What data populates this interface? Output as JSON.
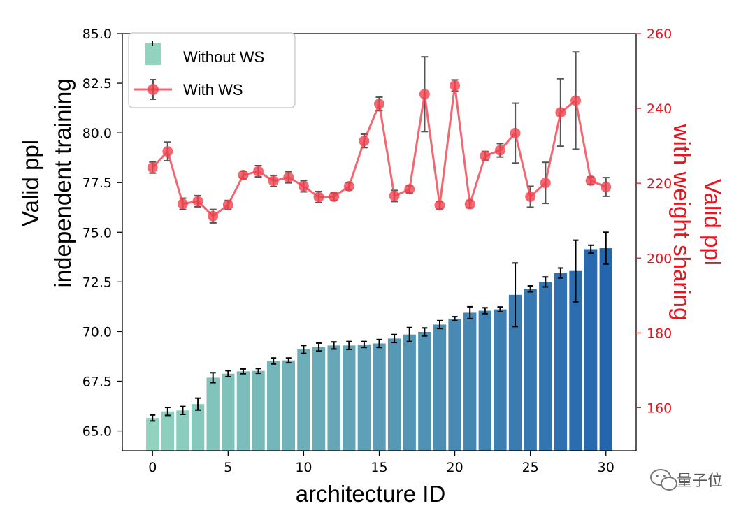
{
  "chart_data": {
    "type": "bar+line",
    "x_label": "architecture ID",
    "y_left_label_line1": "Valid ppl",
    "y_left_label_line2": "independent training",
    "y_right_label_line1": "Valid ppl",
    "y_right_label_line2": "with weight sharing",
    "x_range": [
      -2,
      32
    ],
    "x_ticks": [
      "0",
      "5",
      "10",
      "15",
      "20",
      "25",
      "30"
    ],
    "y_left_range": [
      64.0,
      85.0
    ],
    "y_left_ticks": [
      "65.0",
      "67.5",
      "70.0",
      "72.5",
      "75.0",
      "77.5",
      "80.0",
      "82.5",
      "85.0"
    ],
    "y_right_range": [
      148.5,
      260
    ],
    "y_right_ticks": [
      "160",
      "180",
      "200",
      "220",
      "240",
      "260"
    ],
    "colors": {
      "bar_start": "#91d3be",
      "bar_end": "#2466ae",
      "line": "#f0414e",
      "right_axis": "#e8141e",
      "errorbar_bar": "#000000",
      "errorbar_line": "#555555"
    },
    "series": [
      {
        "name": "Without WS",
        "type": "bar",
        "axis": "left",
        "x": [
          0,
          1,
          2,
          3,
          4,
          5,
          6,
          7,
          8,
          9,
          10,
          11,
          12,
          13,
          14,
          15,
          16,
          17,
          18,
          19,
          20,
          21,
          22,
          23,
          24,
          25,
          26,
          27,
          28,
          29,
          30
        ],
        "values": [
          65.65,
          65.98,
          66.03,
          66.35,
          67.68,
          67.88,
          68.0,
          68.02,
          68.52,
          68.55,
          69.1,
          69.22,
          69.3,
          69.3,
          69.35,
          69.4,
          69.65,
          69.85,
          69.98,
          70.35,
          70.65,
          70.95,
          71.05,
          71.12,
          71.85,
          72.15,
          72.5,
          72.95,
          73.05,
          74.15,
          74.2
        ],
        "errors": [
          0.15,
          0.2,
          0.2,
          0.3,
          0.25,
          0.15,
          0.12,
          0.12,
          0.15,
          0.12,
          0.2,
          0.2,
          0.18,
          0.2,
          0.15,
          0.2,
          0.2,
          0.35,
          0.2,
          0.2,
          0.1,
          0.3,
          0.15,
          0.12,
          1.6,
          0.15,
          0.25,
          0.25,
          1.55,
          0.2,
          0.8
        ]
      },
      {
        "name": "With WS",
        "type": "line",
        "axis": "right",
        "x": [
          0,
          1,
          2,
          3,
          4,
          5,
          6,
          7,
          8,
          9,
          10,
          11,
          12,
          13,
          14,
          15,
          16,
          17,
          18,
          19,
          20,
          21,
          22,
          23,
          24,
          25,
          26,
          27,
          28,
          29,
          30
        ],
        "values": [
          224.2,
          228.5,
          214.5,
          215.2,
          211.2,
          214.2,
          222.2,
          223.2,
          220.6,
          221.6,
          219.2,
          216.3,
          216.4,
          219.2,
          231.3,
          241.2,
          216.6,
          218.4,
          243.8,
          214.1,
          246.1,
          214.4,
          227.3,
          228.8,
          233.4,
          216.4,
          220.1,
          238.9,
          242.1,
          220.7,
          219.0
        ],
        "errors": [
          1.5,
          2.5,
          1.5,
          1.5,
          1.8,
          1.2,
          1.0,
          1.5,
          1.5,
          1.5,
          1.5,
          1.5,
          1.0,
          1.0,
          1.8,
          1.8,
          1.5,
          1.0,
          10.0,
          1.0,
          1.5,
          1.0,
          1.2,
          1.8,
          8.0,
          2.8,
          5.5,
          9.0,
          13.0,
          1.0,
          2.5
        ]
      }
    ],
    "legend": {
      "position": "top-left",
      "entries": [
        "Without WS",
        "With WS"
      ]
    }
  },
  "watermark": {
    "text": "量子位",
    "icon": "wechat-icon"
  }
}
